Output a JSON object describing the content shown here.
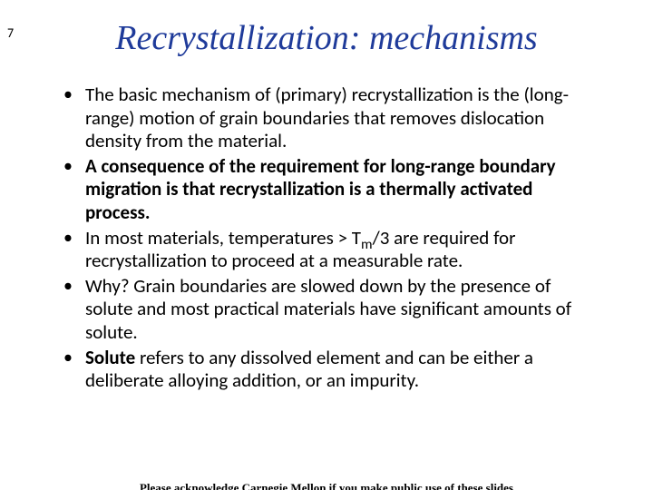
{
  "slide": {
    "page_number": "7",
    "title": "Recrystallization: mechanisms",
    "bullets": [
      {
        "text": "The basic mechanism of (primary) recrystallization is the (long-range) motion of grain boundaries that removes dislocation density from the material.",
        "bold": false,
        "has_sub": false
      },
      {
        "text": "A consequence of the requirement for long-range boundary migration is that recrystallization is a thermally activated process.",
        "bold": true,
        "has_sub": false
      },
      {
        "pre": "In most materials, temperatures > T",
        "sub": "m",
        "post": "/3 are required for recrystallization to proceed at a measurable rate.",
        "bold": false,
        "has_sub": true
      },
      {
        "text": "Why? Grain boundaries are slowed down by the presence of solute and most practical materials have significant amounts of solute.",
        "bold": false,
        "has_sub": false
      },
      {
        "lead": "Solute",
        "rest": " refers to any dissolved element and can be either a deliberate alloying addition, or an impurity.",
        "bold": false,
        "has_sub": false,
        "lead_bold": true
      }
    ],
    "footer": "Please acknowledge Carnegie Mellon if you make public use of these slides"
  },
  "colors": {
    "title_color": "#1f3b9a",
    "text_color": "#000000",
    "background": "#ffffff"
  },
  "typography": {
    "title_font": "Georgia, Times New Roman, serif",
    "title_size_pt": 28,
    "body_font": "Calibri, Arial, sans-serif",
    "body_size_pt": 16,
    "footer_size_pt": 10
  }
}
